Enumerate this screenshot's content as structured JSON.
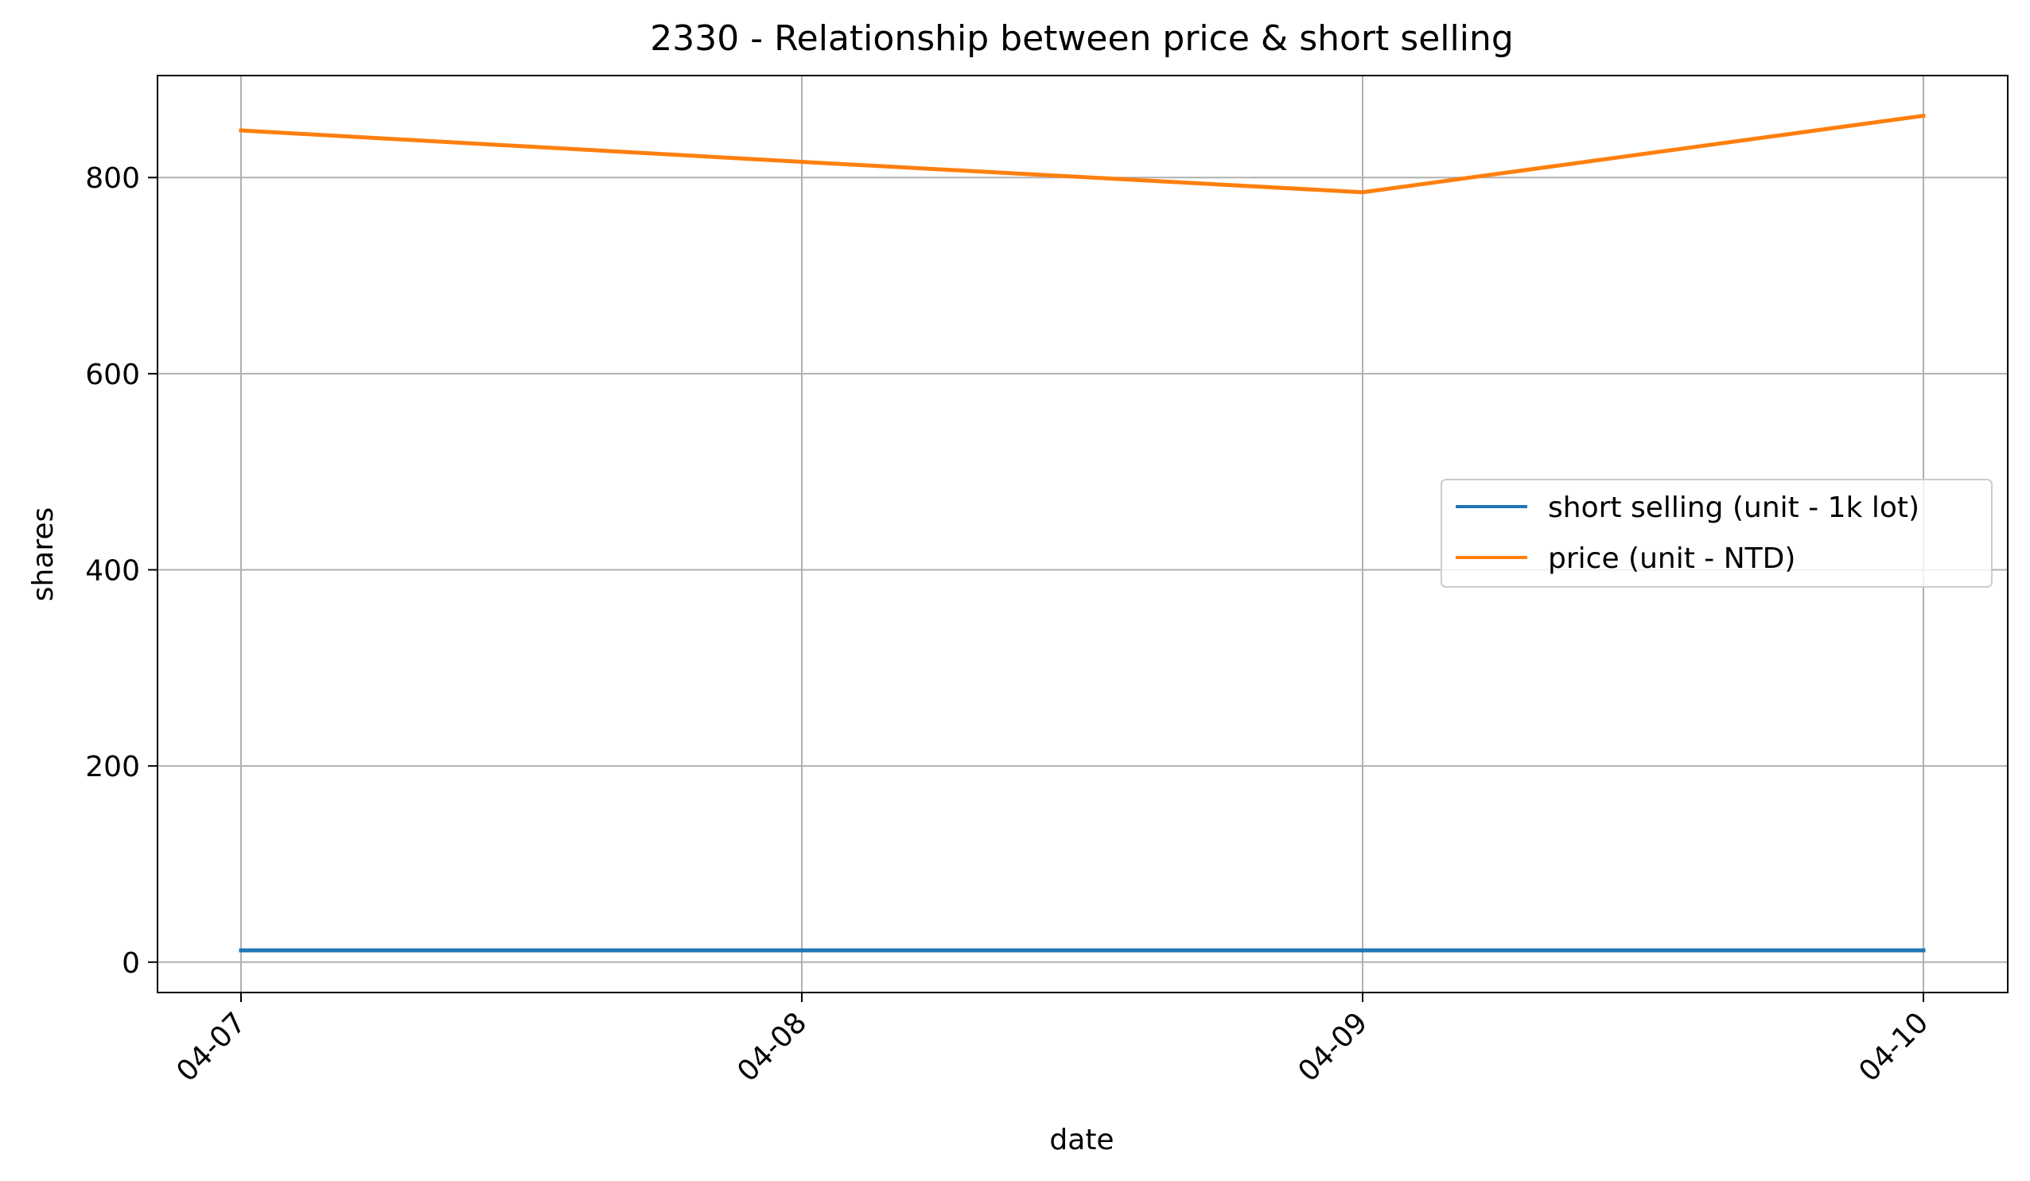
{
  "chart_data": {
    "type": "line",
    "title": "2330 - Relationship between price & short selling",
    "xlabel": "date",
    "ylabel": "shares",
    "categories": [
      "04-07",
      "04-08",
      "04-09",
      "04-10"
    ],
    "series": [
      {
        "name": "short selling (unit - 1k lot)",
        "color": "#1f77b4",
        "values": [
          12,
          12,
          12,
          12
        ]
      },
      {
        "name": "price (unit - NTD)",
        "color": "#ff7f0e",
        "values": [
          848,
          816,
          785,
          863
        ]
      }
    ],
    "ylim": [
      -31,
      904
    ],
    "yticks": [
      0,
      200,
      400,
      600,
      800
    ],
    "grid": true,
    "legend_position": "center-right"
  }
}
